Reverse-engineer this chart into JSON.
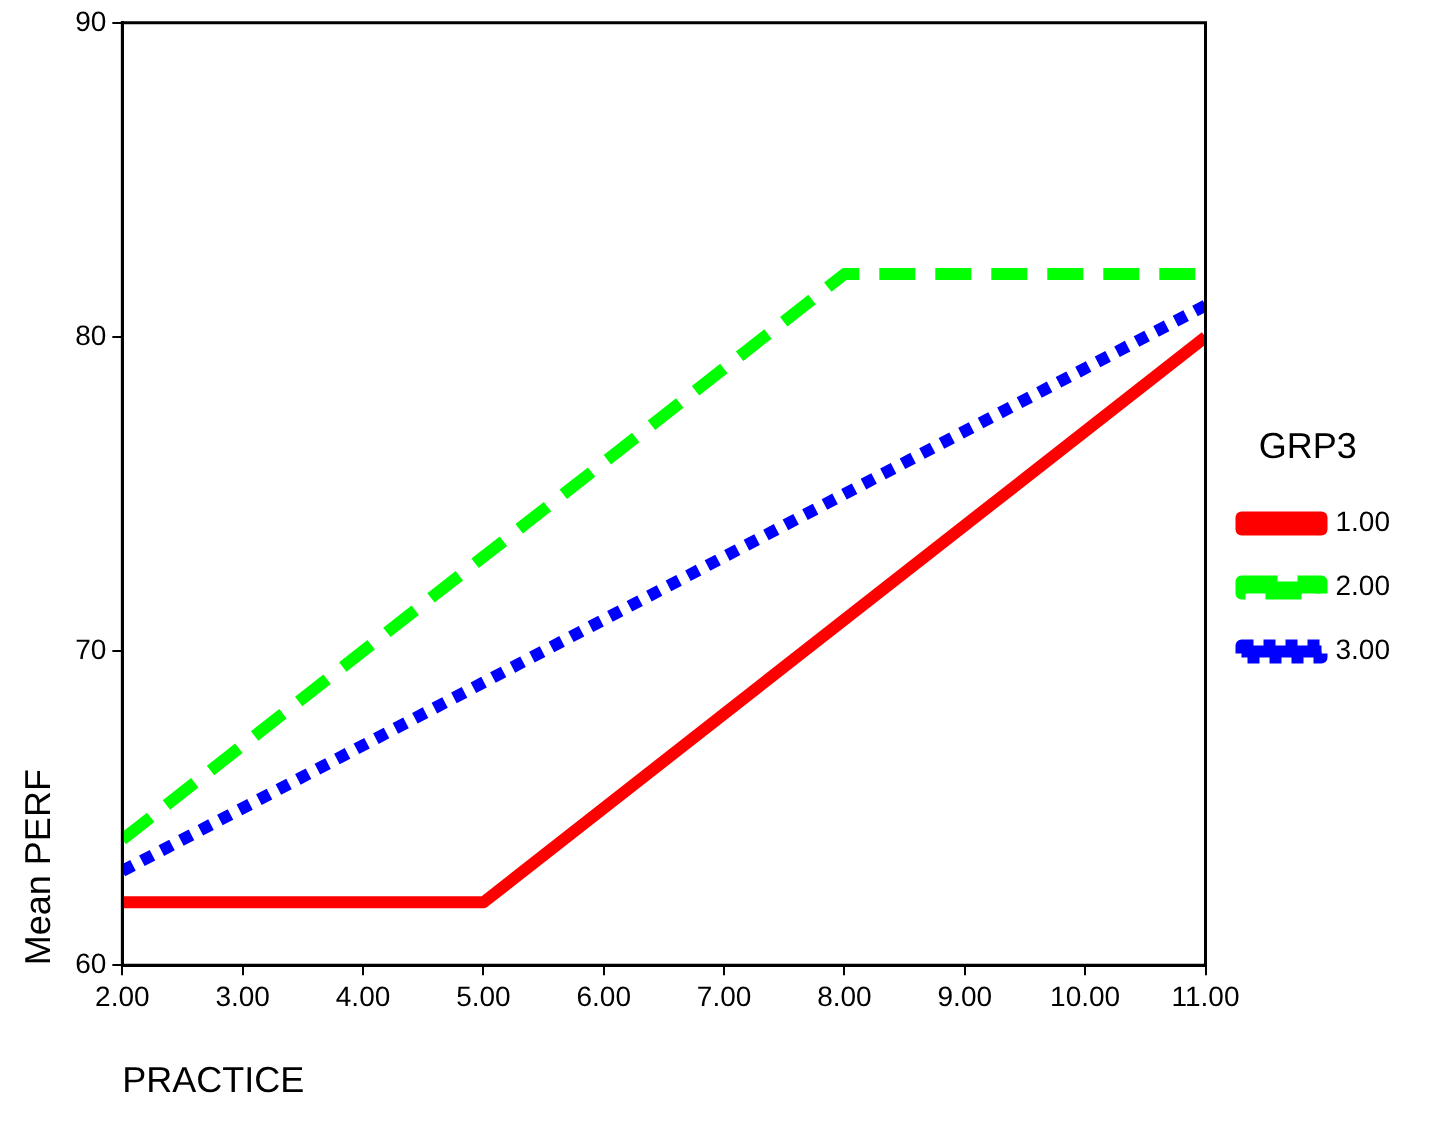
{
  "chart_data": {
    "type": "line",
    "xlabel": "PRACTICE",
    "ylabel": "Mean PERF",
    "legend_title": "GRP3",
    "legend": "right",
    "grid": false,
    "marker": "none",
    "xlim": [
      2,
      11
    ],
    "xticks": [
      {
        "value": 2,
        "label": "2.00"
      },
      {
        "value": 3,
        "label": "3.00"
      },
      {
        "value": 4,
        "label": "4.00"
      },
      {
        "value": 5,
        "label": "5.00"
      },
      {
        "value": 6,
        "label": "6.00"
      },
      {
        "value": 7,
        "label": "7.00"
      },
      {
        "value": 8,
        "label": "8.00"
      },
      {
        "value": 9,
        "label": "9.00"
      },
      {
        "value": 10,
        "label": "10.00"
      },
      {
        "value": 11,
        "label": "11.00"
      }
    ],
    "ylim": [
      60,
      90
    ],
    "yticks": [
      60,
      70,
      80,
      90
    ],
    "series": [
      {
        "name": "1.00",
        "color": "#ff0000",
        "line_style": "solid",
        "x": [
          2,
          5,
          11
        ],
        "values": [
          62,
          62,
          80
        ]
      },
      {
        "name": "2.00",
        "color": "#00ff00",
        "line_style": "dashed",
        "x": [
          2,
          8,
          11
        ],
        "values": [
          64,
          82,
          82
        ]
      },
      {
        "name": "3.00",
        "color": "#0000ff",
        "line_style": "dotted",
        "x": [
          2,
          11
        ],
        "values": [
          63,
          81
        ]
      }
    ]
  }
}
